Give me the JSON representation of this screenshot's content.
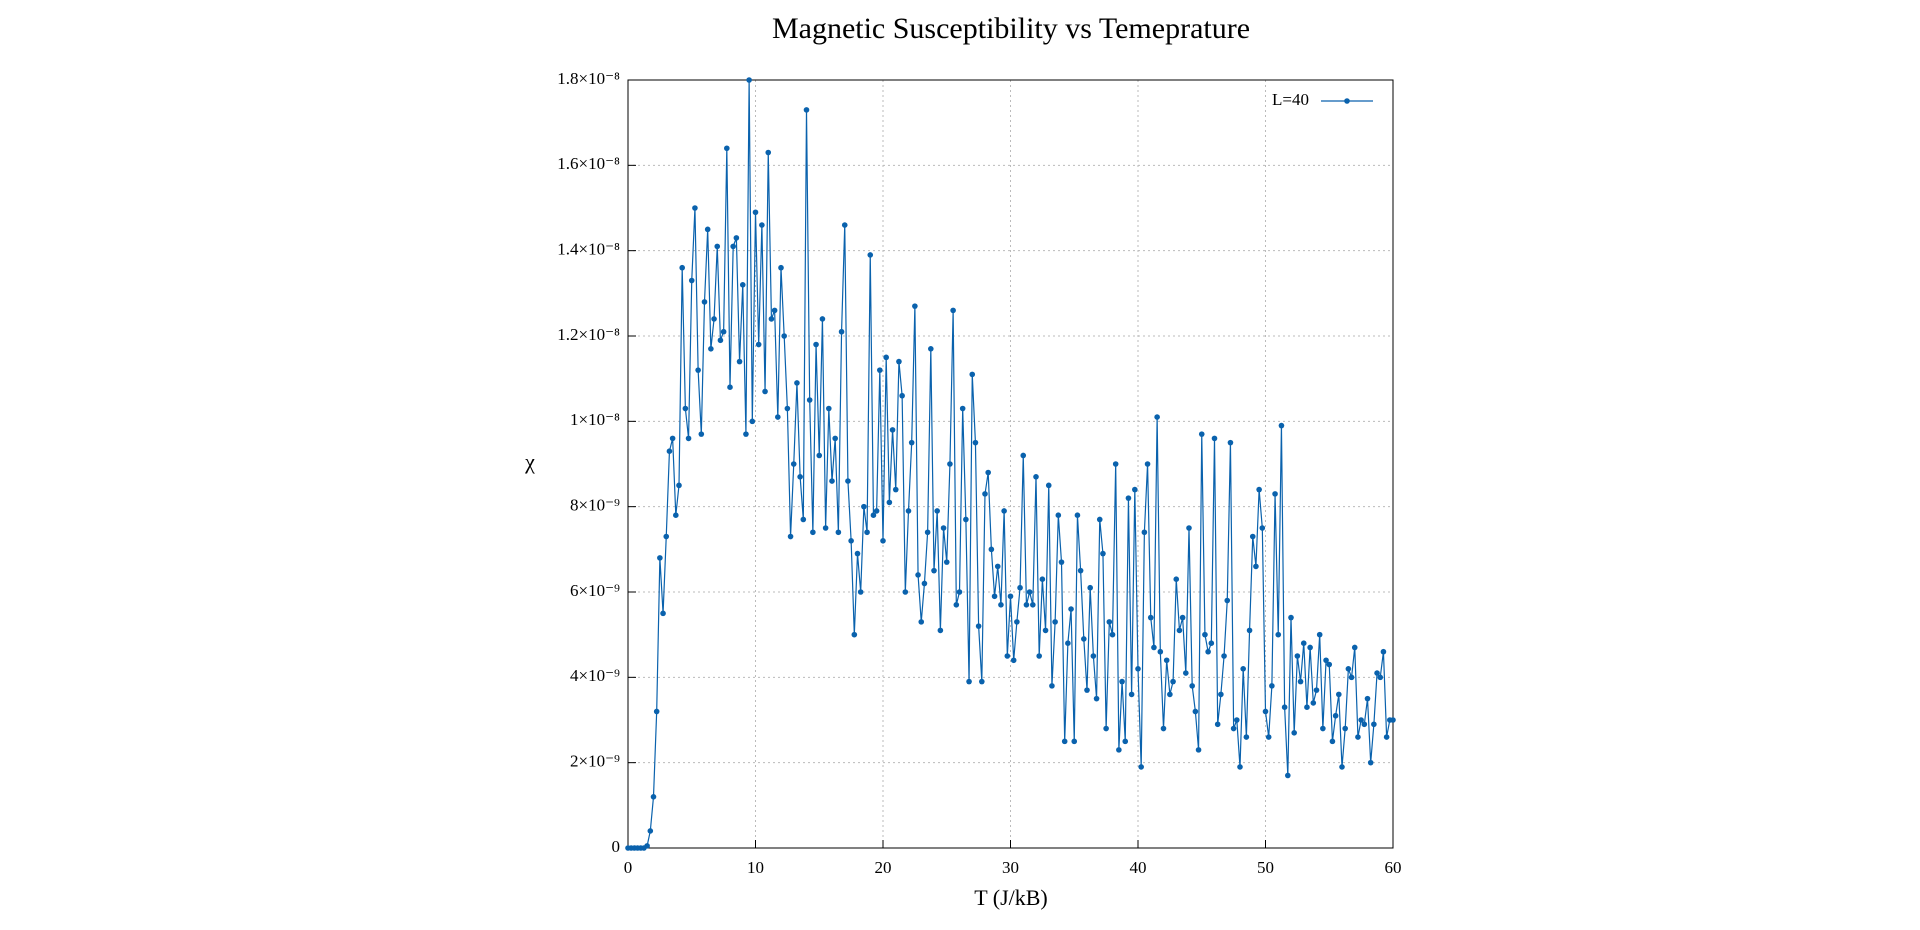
{
  "chart_data": {
    "type": "line",
    "title": "Magnetic Susceptibility vs Temeprature",
    "xlabel": "T (J/kB)",
    "ylabel": "χ",
    "grid": true,
    "legend": "top-right",
    "xlim": [
      0,
      60
    ],
    "ylim": [
      0,
      1.8e-08
    ],
    "xticks": [
      0,
      10,
      20,
      30,
      40,
      50,
      60
    ],
    "yticks": [
      0,
      {
        "value": 2e-09,
        "label": "2×10⁻⁹"
      },
      {
        "value": 4e-09,
        "label": "4×10⁻⁹"
      },
      {
        "value": 6e-09,
        "label": "6×10⁻⁹"
      },
      {
        "value": 8e-09,
        "label": "8×10⁻⁹"
      },
      {
        "value": 1e-08,
        "label": "1×10⁻⁸"
      },
      {
        "value": 1.2e-08,
        "label": "1.2×10⁻⁸"
      },
      {
        "value": 1.4e-08,
        "label": "1.4×10⁻⁸"
      },
      {
        "value": 1.6e-08,
        "label": "1.6×10⁻⁸"
      },
      {
        "value": 1.8e-08,
        "label": "1.8×10⁻⁸"
      }
    ],
    "x": [
      0,
      0.25,
      0.5,
      0.75,
      1,
      1.25,
      1.5,
      1.75,
      2,
      2.25,
      2.5,
      2.75,
      3,
      3.25,
      3.5,
      3.75,
      4,
      4.25,
      4.5,
      4.75,
      5,
      5.25,
      5.5,
      5.75,
      6,
      6.25,
      6.5,
      6.75,
      7,
      7.25,
      7.5,
      7.75,
      8,
      8.25,
      8.5,
      8.75,
      9,
      9.25,
      9.5,
      9.75,
      10,
      10.25,
      10.5,
      10.75,
      11,
      11.25,
      11.5,
      11.75,
      12,
      12.25,
      12.5,
      12.75,
      13,
      13.25,
      13.5,
      13.75,
      14,
      14.25,
      14.5,
      14.75,
      15,
      15.25,
      15.5,
      15.75,
      16,
      16.25,
      16.5,
      16.75,
      17,
      17.25,
      17.5,
      17.75,
      18,
      18.25,
      18.5,
      18.75,
      19,
      19.25,
      19.5,
      19.75,
      20,
      20.25,
      20.5,
      20.75,
      21,
      21.25,
      21.5,
      21.75,
      22,
      22.25,
      22.5,
      22.75,
      23,
      23.25,
      23.5,
      23.75,
      24,
      24.25,
      24.5,
      24.75,
      25,
      25.25,
      25.5,
      25.75,
      26,
      26.25,
      26.5,
      26.75,
      27,
      27.25,
      27.5,
      27.75,
      28,
      28.25,
      28.5,
      28.75,
      29,
      29.25,
      29.5,
      29.75,
      30,
      30.25,
      30.5,
      30.75,
      31,
      31.25,
      31.5,
      31.75,
      32,
      32.25,
      32.5,
      32.75,
      33,
      33.25,
      33.5,
      33.75,
      34,
      34.25,
      34.5,
      34.75,
      35,
      35.25,
      35.5,
      35.75,
      36,
      36.25,
      36.5,
      36.75,
      37,
      37.25,
      37.5,
      37.75,
      38,
      38.25,
      38.5,
      38.75,
      39,
      39.25,
      39.5,
      39.75,
      40,
      40.25,
      40.5,
      40.75,
      41,
      41.25,
      41.5,
      41.75,
      42,
      42.25,
      42.5,
      42.75,
      43,
      43.25,
      43.5,
      43.75,
      44,
      44.25,
      44.5,
      44.75,
      45,
      45.25,
      45.5,
      45.75,
      46,
      46.25,
      46.5,
      46.75,
      47,
      47.25,
      47.5,
      47.75,
      48,
      48.25,
      48.5,
      48.75,
      49,
      49.25,
      49.5,
      49.75,
      50,
      50.25,
      50.5,
      50.75,
      51,
      51.25,
      51.5,
      51.75,
      52,
      52.25,
      52.5,
      52.75,
      53,
      53.25,
      53.5,
      53.75,
      54,
      54.25,
      54.5,
      54.75,
      55,
      55.25,
      55.5,
      55.75,
      56,
      56.25,
      56.5,
      56.75,
      57,
      57.25,
      57.5,
      57.75,
      58,
      58.25,
      58.5,
      58.75,
      59,
      59.25,
      59.5,
      59.75,
      60
    ],
    "series": [
      {
        "name": "L=40",
        "color": "#0a62ad",
        "values": [
          0,
          0,
          0,
          0,
          0,
          0,
          5e-11,
          4e-10,
          1.2e-09,
          3.2e-09,
          6.8e-09,
          5.5e-09,
          7.3e-09,
          9.3e-09,
          9.6e-09,
          7.8e-09,
          8.5e-09,
          1.36e-08,
          1.03e-08,
          9.6e-09,
          1.33e-08,
          1.5e-08,
          1.12e-08,
          9.7e-09,
          1.28e-08,
          1.45e-08,
          1.17e-08,
          1.24e-08,
          1.41e-08,
          1.19e-08,
          1.21e-08,
          1.64e-08,
          1.08e-08,
          1.41e-08,
          1.43e-08,
          1.14e-08,
          1.32e-08,
          9.7e-09,
          1.8e-08,
          1e-08,
          1.49e-08,
          1.18e-08,
          1.46e-08,
          1.07e-08,
          1.63e-08,
          1.24e-08,
          1.26e-08,
          1.01e-08,
          1.36e-08,
          1.2e-08,
          1.03e-08,
          7.3e-09,
          9e-09,
          1.09e-08,
          8.7e-09,
          7.7e-09,
          1.73e-08,
          1.05e-08,
          7.4e-09,
          1.18e-08,
          9.2e-09,
          1.24e-08,
          7.5e-09,
          1.03e-08,
          8.6e-09,
          9.6e-09,
          7.4e-09,
          1.21e-08,
          1.46e-08,
          8.6e-09,
          7.2e-09,
          5e-09,
          6.9e-09,
          6e-09,
          8e-09,
          7.4e-09,
          1.39e-08,
          7.8e-09,
          7.9e-09,
          1.12e-08,
          7.2e-09,
          1.15e-08,
          8.1e-09,
          9.8e-09,
          8.4e-09,
          1.14e-08,
          1.06e-08,
          6e-09,
          7.9e-09,
          9.5e-09,
          1.27e-08,
          6.4e-09,
          5.3e-09,
          6.2e-09,
          7.4e-09,
          1.17e-08,
          6.5e-09,
          7.9e-09,
          5.1e-09,
          7.5e-09,
          6.7e-09,
          9e-09,
          1.26e-08,
          5.7e-09,
          6e-09,
          1.03e-08,
          7.7e-09,
          3.9e-09,
          1.11e-08,
          9.5e-09,
          5.2e-09,
          3.9e-09,
          8.3e-09,
          8.8e-09,
          7e-09,
          5.9e-09,
          6.6e-09,
          5.7e-09,
          7.9e-09,
          4.5e-09,
          5.9e-09,
          4.4e-09,
          5.3e-09,
          6.1e-09,
          9.2e-09,
          5.7e-09,
          6e-09,
          5.7e-09,
          8.7e-09,
          4.5e-09,
          6.3e-09,
          5.1e-09,
          8.5e-09,
          3.8e-09,
          5.3e-09,
          7.8e-09,
          6.7e-09,
          2.5e-09,
          4.8e-09,
          5.6e-09,
          2.5e-09,
          7.8e-09,
          6.5e-09,
          4.9e-09,
          3.7e-09,
          6.1e-09,
          4.5e-09,
          3.5e-09,
          7.7e-09,
          6.9e-09,
          2.8e-09,
          5.3e-09,
          5e-09,
          9e-09,
          2.3e-09,
          3.9e-09,
          2.5e-09,
          8.2e-09,
          3.6e-09,
          8.4e-09,
          4.2e-09,
          1.9e-09,
          7.4e-09,
          9e-09,
          5.4e-09,
          4.7e-09,
          1.01e-08,
          4.6e-09,
          2.8e-09,
          4.4e-09,
          3.6e-09,
          3.9e-09,
          6.3e-09,
          5.1e-09,
          5.4e-09,
          4.1e-09,
          7.5e-09,
          3.8e-09,
          3.2e-09,
          2.3e-09,
          9.7e-09,
          5e-09,
          4.6e-09,
          4.8e-09,
          9.6e-09,
          2.9e-09,
          3.6e-09,
          4.5e-09,
          5.8e-09,
          9.5e-09,
          2.8e-09,
          3e-09,
          1.9e-09,
          4.2e-09,
          2.6e-09,
          5.1e-09,
          7.3e-09,
          6.6e-09,
          8.4e-09,
          7.5e-09,
          3.2e-09,
          2.6e-09,
          3.8e-09,
          8.3e-09,
          5e-09,
          9.9e-09,
          3.3e-09,
          1.7e-09,
          5.4e-09,
          2.7e-09,
          4.5e-09,
          3.9e-09,
          4.8e-09,
          3.3e-09,
          4.7e-09,
          3.4e-09,
          3.7e-09,
          5e-09,
          2.8e-09,
          4.4e-09,
          4.3e-09,
          2.5e-09,
          3.1e-09,
          3.6e-09,
          1.9e-09,
          2.8e-09,
          4.2e-09,
          4e-09,
          4.7e-09,
          2.6e-09,
          3e-09,
          2.9e-09,
          3.5e-09,
          2e-09,
          2.9e-09,
          4.1e-09,
          4e-09,
          4.6e-09,
          2.6e-09,
          3e-09,
          3e-09
        ]
      }
    ]
  }
}
